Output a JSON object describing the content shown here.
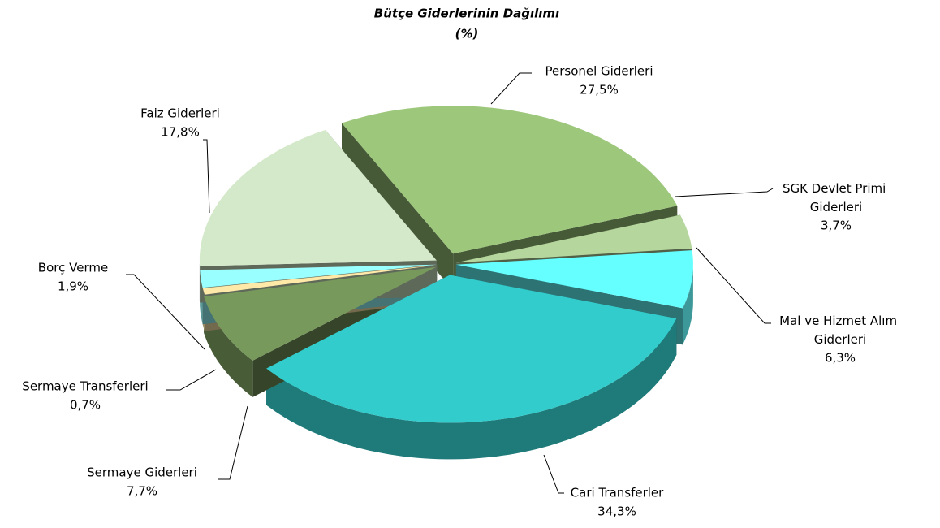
{
  "chart_data": {
    "type": "pie3d",
    "title": "Bütçe Giderlerinin Dağılımı",
    "subtitle": "(%)",
    "categories": [
      "Personel Giderleri",
      "SGK Devlet Primi Giderleri",
      "Mal ve Hizmet Alım Giderleri",
      "Cari Transferler",
      "Sermaye Giderleri",
      "Sermaye Transferleri",
      "Borç Verme",
      "Faiz Giderleri"
    ],
    "values": [
      27.5,
      3.7,
      6.3,
      34.3,
      7.7,
      0.7,
      1.9,
      17.8
    ],
    "value_labels": [
      "27,5%",
      "3,7%",
      "6,3%",
      "34,3%",
      "7,7%",
      "0,7%",
      "1,9%",
      "17,8%"
    ],
    "colors": [
      "#9dc87c",
      "#b5d69c",
      "#66ffff",
      "#33cccc",
      "#77995c",
      "#ffe9a8",
      "#99ffff",
      "#d4e9c9"
    ]
  }
}
